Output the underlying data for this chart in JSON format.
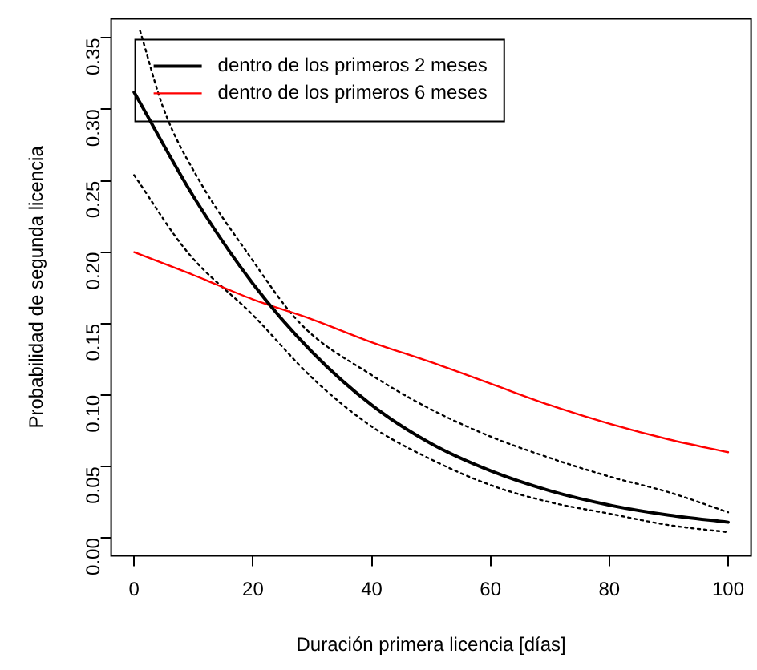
{
  "chart_data": {
    "type": "line",
    "xlabel": "Duración primera licencia [días]",
    "ylabel": "Probabilidad de segunda licencia",
    "xlim": [
      -4,
      104
    ],
    "ylim": [
      -0.013,
      0.364
    ],
    "xticks": [
      0,
      20,
      40,
      60,
      80,
      100
    ],
    "yticks": [
      {
        "value": 0,
        "label": "0.00"
      },
      {
        "value": 0.05,
        "label": "0.05"
      },
      {
        "value": 0.1,
        "label": "0.10"
      },
      {
        "value": 0.15,
        "label": "0.15"
      },
      {
        "value": 0.2,
        "label": "0.20"
      },
      {
        "value": 0.25,
        "label": "0.25"
      },
      {
        "value": 0.3,
        "label": "0.30"
      },
      {
        "value": 0.35,
        "label": "0.35"
      }
    ],
    "grid": false,
    "legend": "top left",
    "marker": "none",
    "series": [
      {
        "name": "dentro de los primeros 2 meses",
        "color": "#000000",
        "line_style": "solid",
        "x": [
          0,
          10,
          20,
          30,
          40,
          50,
          60,
          70,
          80,
          90,
          100
        ],
        "values": [
          0.312,
          0.239,
          0.178,
          0.13,
          0.093,
          0.066,
          0.047,
          0.033,
          0.023,
          0.016,
          0.011
        ]
      },
      {
        "name": "dentro de los primeros 6 meses",
        "color": "#ff0000",
        "line_style": "solid",
        "x": [
          0,
          10,
          20,
          30,
          40,
          50,
          60,
          70,
          80,
          90,
          100
        ],
        "values": [
          0.2,
          0.184,
          0.167,
          0.153,
          0.137,
          0.123,
          0.108,
          0.093,
          0.08,
          0.069,
          0.06
        ]
      },
      {
        "color": "#000000",
        "line_style": "dotted",
        "x": [
          1,
          5,
          11,
          19,
          28,
          40,
          50,
          60,
          70,
          80,
          90,
          100
        ],
        "values": [
          0.355,
          0.3,
          0.25,
          0.2,
          0.15,
          0.114,
          0.09,
          0.071,
          0.056,
          0.043,
          0.032,
          0.018
        ]
      },
      {
        "color": "#000000",
        "line_style": "dotted",
        "x": [
          0,
          9,
          20,
          30,
          40,
          50,
          60,
          70,
          80,
          90,
          100
        ],
        "values": [
          0.254,
          0.2,
          0.156,
          0.112,
          0.078,
          0.055,
          0.037,
          0.025,
          0.017,
          0.009,
          0.004
        ]
      }
    ]
  }
}
